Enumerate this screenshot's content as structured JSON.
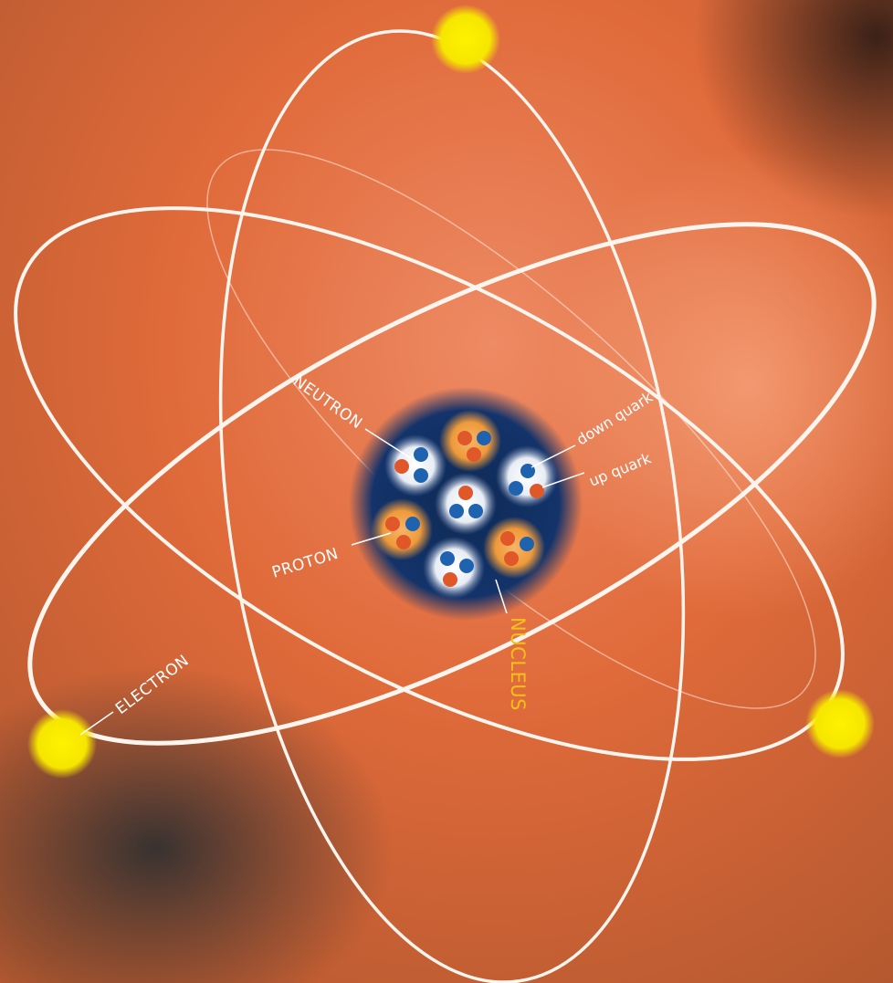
{
  "labels": {
    "neutron": "NEUTRON",
    "proton": "PROTON",
    "down_quark": "down quark",
    "up_quark": "up quark",
    "nucleus": "NUCLEUS",
    "electron": "ELECTRON"
  }
}
